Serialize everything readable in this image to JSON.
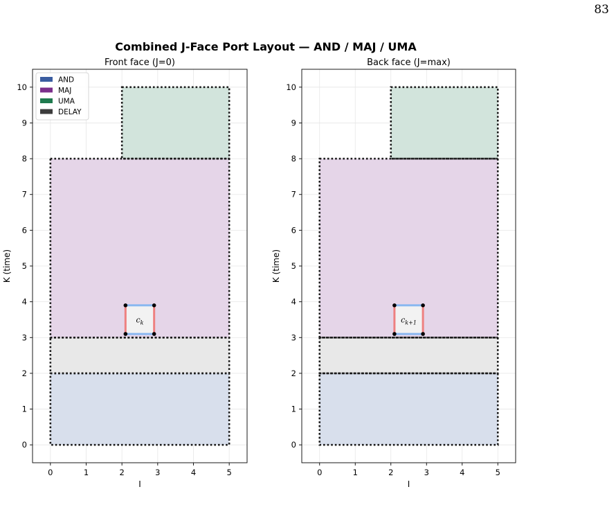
{
  "page_number": "83",
  "chart_data": {
    "type": "region-layout",
    "title": "Combined J-Face Port Layout — AND / MAJ / UMA",
    "colors": {
      "AND": "#3a5da0",
      "MAJ": "#7b2f8b",
      "UMA": "#1f7a4e",
      "DELAY": "#3c3c3c",
      "port_top_bottom": "#8ab8f0",
      "port_left_right": "#ee8080"
    },
    "legend": {
      "placement": "upper-left",
      "entries": [
        {
          "label": "AND",
          "color": "#3a5da0"
        },
        {
          "label": "MAJ",
          "color": "#7b2f8b"
        },
        {
          "label": "UMA",
          "color": "#1f7a4e"
        },
        {
          "label": "DELAY",
          "color": "#3c3c3c"
        }
      ]
    },
    "panels": [
      {
        "title": "Front face (J=0)",
        "xlabel": "I",
        "ylabel": "K (time)",
        "xlim": [
          -0.5,
          5.5
        ],
        "ylim": [
          -0.5,
          10.5
        ],
        "xticks": [
          "0",
          "1",
          "2",
          "3",
          "4",
          "5"
        ],
        "yticks": [
          "0",
          "1",
          "2",
          "3",
          "4",
          "5",
          "6",
          "7",
          "8",
          "9",
          "10"
        ],
        "grid": true,
        "show_legend": true,
        "regions": [
          {
            "kind": "AND",
            "i": [
              0,
              5
            ],
            "k": [
              0,
              2
            ]
          },
          {
            "kind": "DELAY",
            "i": [
              0,
              5
            ],
            "k": [
              2,
              3
            ]
          },
          {
            "kind": "MAJ",
            "i": [
              0,
              5
            ],
            "k": [
              3,
              8
            ]
          },
          {
            "kind": "UMA",
            "i": [
              2,
              5
            ],
            "k": [
              8,
              10
            ]
          }
        ],
        "port": {
          "label_base": "c",
          "label_sub": "k",
          "i": [
            2.1,
            2.9
          ],
          "k": [
            3.1,
            3.9
          ]
        }
      },
      {
        "title": "Back face (J=max)",
        "xlabel": "I",
        "ylabel": "K (time)",
        "xlim": [
          -0.5,
          5.5
        ],
        "ylim": [
          -0.5,
          10.5
        ],
        "xticks": [
          "0",
          "1",
          "2",
          "3",
          "4",
          "5"
        ],
        "yticks": [
          "0",
          "1",
          "2",
          "3",
          "4",
          "5",
          "6",
          "7",
          "8",
          "9",
          "10"
        ],
        "grid": true,
        "show_legend": false,
        "regions": [
          {
            "kind": "AND",
            "i": [
              0,
              5
            ],
            "k": [
              0,
              2
            ]
          },
          {
            "kind": "DELAY",
            "i": [
              0,
              5
            ],
            "k": [
              2,
              3
            ]
          },
          {
            "kind": "MAJ",
            "i": [
              0,
              5
            ],
            "k": [
              3,
              8
            ]
          },
          {
            "kind": "UMA",
            "i": [
              2,
              5
            ],
            "k": [
              8,
              10
            ]
          }
        ],
        "port": {
          "label_base": "c",
          "label_sub": "k+1",
          "i": [
            2.1,
            2.9
          ],
          "k": [
            3.1,
            3.9
          ]
        }
      }
    ]
  }
}
